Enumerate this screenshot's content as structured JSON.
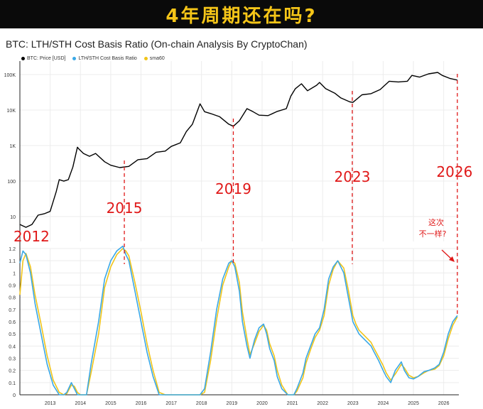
{
  "banner": {
    "title": "4年周期还在吗?"
  },
  "chart_data": {
    "type": "line",
    "title": "BTC: LTH/STH Cost Basis Ratio (On-chain Analysis By CryptoChan)",
    "legend": [
      {
        "name": "BTC: Price [USD]",
        "color": "#000000"
      },
      {
        "name": "LTH/STH Cost Basis Ratio",
        "color": "#3aa8e6"
      },
      {
        "name": "sma60",
        "color": "#f0c419"
      }
    ],
    "x_ticks": [
      "2013",
      "2014",
      "2015",
      "2016",
      "2017",
      "2018",
      "2019",
      "2020",
      "2021",
      "2022",
      "2023",
      "2024",
      "2025",
      "2026"
    ],
    "upper_panel": {
      "scale": "log",
      "ylim": [
        2,
        200000
      ],
      "y_ticks": [
        {
          "label": "100K",
          "value": 100000
        },
        {
          "label": "10K",
          "value": 10000
        },
        {
          "label": "1K",
          "value": 1000
        },
        {
          "label": "100",
          "value": 100
        },
        {
          "label": "10",
          "value": 10
        }
      ],
      "series": [
        {
          "name": "BTC: Price [USD]",
          "x": [
            2012.0,
            2012.2,
            2012.4,
            2012.6,
            2012.8,
            2013.0,
            2013.2,
            2013.3,
            2013.45,
            2013.6,
            2013.75,
            2013.9,
            2013.95,
            2014.1,
            2014.3,
            2014.5,
            2014.8,
            2015.0,
            2015.3,
            2015.6,
            2015.9,
            2016.2,
            2016.5,
            2016.8,
            2017.0,
            2017.3,
            2017.5,
            2017.7,
            2017.95,
            2018.1,
            2018.3,
            2018.6,
            2018.9,
            2019.05,
            2019.25,
            2019.5,
            2019.7,
            2019.9,
            2020.2,
            2020.5,
            2020.8,
            2020.95,
            2021.1,
            2021.3,
            2021.5,
            2021.8,
            2021.9,
            2022.1,
            2022.4,
            2022.6,
            2022.9,
            2023.0,
            2023.3,
            2023.6,
            2023.9,
            2024.2,
            2024.5,
            2024.8,
            2024.95,
            2025.2,
            2025.5,
            2025.8,
            2025.95,
            2026.2,
            2026.45
          ],
          "values": [
            6,
            5,
            6,
            11,
            12,
            14,
            50,
            110,
            100,
            110,
            250,
            900,
            800,
            600,
            500,
            600,
            350,
            280,
            240,
            260,
            400,
            430,
            650,
            700,
            950,
            1200,
            2500,
            4000,
            15000,
            9000,
            8000,
            6500,
            4000,
            3500,
            5000,
            11000,
            9000,
            7200,
            7000,
            9200,
            11000,
            25000,
            40000,
            55000,
            35000,
            50000,
            60000,
            40000,
            30000,
            22000,
            17000,
            16500,
            27000,
            29000,
            38000,
            65000,
            62000,
            65000,
            95000,
            85000,
            105000,
            115000,
            95000,
            78000,
            70000
          ]
        }
      ]
    },
    "lower_panel": {
      "ylim": [
        0,
        1.2
      ],
      "y_ticks": [
        "0",
        "0.1",
        "0.2",
        "0.3",
        "0.4",
        "0.5",
        "0.6",
        "0.7",
        "0.8",
        "0.9",
        "1",
        "1.1",
        "1.2"
      ],
      "series": [
        {
          "name": "LTH/STH Cost Basis Ratio",
          "x": [
            2012.0,
            2012.1,
            2012.2,
            2012.35,
            2012.5,
            2012.7,
            2012.9,
            2013.1,
            2013.3,
            2013.45,
            2013.55,
            2013.7,
            2013.8,
            2013.9,
            2014.0,
            2014.2,
            2014.35,
            2014.6,
            2014.8,
            2015.0,
            2015.2,
            2015.4,
            2015.5,
            2015.6,
            2015.8,
            2016.0,
            2016.2,
            2016.4,
            2016.6,
            2016.8,
            2017.0,
            2017.2,
            2017.4,
            2017.6,
            2017.8,
            2017.95,
            2018.1,
            2018.3,
            2018.5,
            2018.7,
            2018.9,
            2019.0,
            2019.1,
            2019.25,
            2019.35,
            2019.5,
            2019.6,
            2019.75,
            2019.9,
            2020.05,
            2020.15,
            2020.25,
            2020.4,
            2020.5,
            2020.65,
            2020.85,
            2020.95,
            2021.05,
            2021.15,
            2021.35,
            2021.45,
            2021.6,
            2021.75,
            2021.9,
            2022.05,
            2022.2,
            2022.35,
            2022.5,
            2022.7,
            2022.85,
            2023.0,
            2023.1,
            2023.2,
            2023.4,
            2023.6,
            2023.7,
            2023.85,
            2024.0,
            2024.1,
            2024.25,
            2024.4,
            2024.6,
            2024.7,
            2024.85,
            2025.0,
            2025.15,
            2025.35,
            2025.5,
            2025.7,
            2025.85,
            2026.0,
            2026.15,
            2026.3,
            2026.45
          ],
          "values": [
            1.08,
            1.18,
            1.15,
            1.0,
            0.75,
            0.5,
            0.25,
            0.08,
            0.0,
            0.0,
            0.02,
            0.1,
            0.05,
            0.0,
            0.0,
            0.0,
            0.25,
            0.6,
            0.95,
            1.1,
            1.18,
            1.22,
            1.15,
            1.1,
            0.85,
            0.6,
            0.35,
            0.15,
            0.0,
            0.0,
            0.0,
            0.0,
            0.0,
            0.0,
            0.0,
            0.0,
            0.05,
            0.35,
            0.7,
            0.95,
            1.08,
            1.1,
            1.05,
            0.85,
            0.6,
            0.4,
            0.3,
            0.45,
            0.55,
            0.58,
            0.5,
            0.38,
            0.28,
            0.15,
            0.05,
            0.0,
            0.0,
            0.0,
            0.05,
            0.18,
            0.3,
            0.4,
            0.5,
            0.55,
            0.7,
            0.95,
            1.05,
            1.1,
            1.0,
            0.8,
            0.6,
            0.55,
            0.5,
            0.45,
            0.4,
            0.35,
            0.28,
            0.2,
            0.15,
            0.1,
            0.2,
            0.27,
            0.2,
            0.14,
            0.13,
            0.15,
            0.19,
            0.2,
            0.22,
            0.25,
            0.35,
            0.5,
            0.6,
            0.65
          ]
        },
        {
          "name": "sma60",
          "x": [
            2012.0,
            2012.1,
            2012.2,
            2012.35,
            2012.5,
            2012.7,
            2012.9,
            2013.1,
            2013.3,
            2013.45,
            2013.55,
            2013.7,
            2013.8,
            2013.9,
            2014.0,
            2014.2,
            2014.35,
            2014.6,
            2014.8,
            2015.0,
            2015.2,
            2015.4,
            2015.5,
            2015.6,
            2015.8,
            2016.0,
            2016.2,
            2016.4,
            2016.6,
            2016.8,
            2017.0,
            2017.2,
            2017.4,
            2017.6,
            2017.8,
            2017.95,
            2018.1,
            2018.3,
            2018.5,
            2018.7,
            2018.9,
            2019.0,
            2019.1,
            2019.25,
            2019.35,
            2019.5,
            2019.6,
            2019.75,
            2019.9,
            2020.05,
            2020.15,
            2020.25,
            2020.4,
            2020.5,
            2020.65,
            2020.85,
            2020.95,
            2021.05,
            2021.15,
            2021.35,
            2021.45,
            2021.6,
            2021.75,
            2021.9,
            2022.05,
            2022.2,
            2022.35,
            2022.5,
            2022.7,
            2022.85,
            2023.0,
            2023.1,
            2023.2,
            2023.4,
            2023.6,
            2023.7,
            2023.85,
            2024.0,
            2024.1,
            2024.25,
            2024.4,
            2024.6,
            2024.7,
            2024.85,
            2025.0,
            2025.15,
            2025.35,
            2025.5,
            2025.7,
            2025.85,
            2026.0,
            2026.15,
            2026.3,
            2026.45
          ],
          "values": [
            0.82,
            1.1,
            1.16,
            1.05,
            0.82,
            0.58,
            0.32,
            0.12,
            0.02,
            0.0,
            0.01,
            0.08,
            0.07,
            0.02,
            0.0,
            0.0,
            0.18,
            0.5,
            0.88,
            1.05,
            1.15,
            1.2,
            1.18,
            1.14,
            0.92,
            0.68,
            0.42,
            0.2,
            0.02,
            0.0,
            0.0,
            0.0,
            0.0,
            0.0,
            0.0,
            0.0,
            0.02,
            0.28,
            0.62,
            0.9,
            1.05,
            1.1,
            1.08,
            0.92,
            0.68,
            0.46,
            0.33,
            0.42,
            0.52,
            0.57,
            0.53,
            0.42,
            0.32,
            0.2,
            0.08,
            0.0,
            0.0,
            0.0,
            0.03,
            0.14,
            0.26,
            0.37,
            0.47,
            0.53,
            0.65,
            0.9,
            1.03,
            1.1,
            1.04,
            0.86,
            0.65,
            0.58,
            0.53,
            0.48,
            0.43,
            0.38,
            0.31,
            0.24,
            0.18,
            0.12,
            0.17,
            0.25,
            0.22,
            0.16,
            0.14,
            0.15,
            0.18,
            0.2,
            0.21,
            0.24,
            0.32,
            0.46,
            0.57,
            0.64
          ]
        }
      ]
    },
    "annotations": [
      {
        "label": "2012",
        "x": 2012.15
      },
      {
        "label": "2015",
        "x": 2015.45
      },
      {
        "label": "2019",
        "x": 2019.05
      },
      {
        "label": "2023",
        "x": 2022.98
      },
      {
        "label": "2026",
        "x": 2026.45
      }
    ],
    "note": {
      "line1": "这次",
      "line2": "不一样?"
    }
  }
}
